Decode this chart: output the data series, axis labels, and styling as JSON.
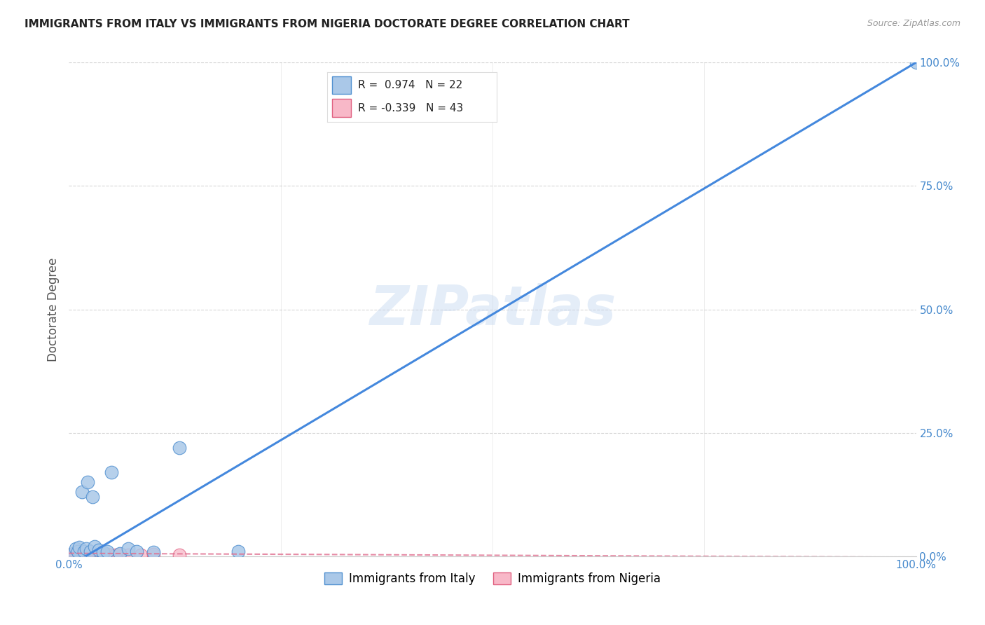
{
  "title": "IMMIGRANTS FROM ITALY VS IMMIGRANTS FROM NIGERIA DOCTORATE DEGREE CORRELATION CHART",
  "source": "Source: ZipAtlas.com",
  "ylabel": "Doctorate Degree",
  "legend_labels": [
    "Immigrants from Italy",
    "Immigrants from Nigeria"
  ],
  "italy_R": 0.974,
  "italy_N": 22,
  "nigeria_R": -0.339,
  "nigeria_N": 43,
  "italy_scatter_color": "#aac8e8",
  "italy_scatter_edge": "#5090d0",
  "nigeria_scatter_color": "#f8b8c8",
  "nigeria_scatter_edge": "#e06080",
  "italy_line_color": "#4488dd",
  "nigeria_line_color": "#e07090",
  "watermark": "ZIPatlas",
  "italy_x": [
    0.005,
    0.008,
    0.01,
    0.012,
    0.015,
    0.018,
    0.02,
    0.022,
    0.025,
    0.028,
    0.03,
    0.035,
    0.04,
    0.045,
    0.05,
    0.06,
    0.07,
    0.08,
    0.1,
    0.13,
    0.2,
    1.0
  ],
  "italy_y": [
    0.005,
    0.015,
    0.01,
    0.018,
    0.13,
    0.01,
    0.015,
    0.15,
    0.01,
    0.12,
    0.02,
    0.012,
    0.008,
    0.01,
    0.17,
    0.005,
    0.015,
    0.01,
    0.008,
    0.22,
    0.01,
    1.0
  ],
  "nigeria_x": [
    0.002,
    0.003,
    0.004,
    0.005,
    0.006,
    0.007,
    0.008,
    0.009,
    0.01,
    0.011,
    0.012,
    0.013,
    0.014,
    0.015,
    0.016,
    0.017,
    0.018,
    0.019,
    0.02,
    0.021,
    0.022,
    0.023,
    0.024,
    0.025,
    0.026,
    0.027,
    0.028,
    0.029,
    0.03,
    0.032,
    0.034,
    0.036,
    0.038,
    0.04,
    0.042,
    0.045,
    0.05,
    0.055,
    0.06,
    0.07,
    0.085,
    0.1,
    0.13
  ],
  "nigeria_y": [
    0.003,
    0.004,
    0.003,
    0.004,
    0.003,
    0.004,
    0.003,
    0.004,
    0.003,
    0.003,
    0.004,
    0.003,
    0.004,
    0.003,
    0.004,
    0.003,
    0.004,
    0.003,
    0.004,
    0.003,
    0.003,
    0.004,
    0.003,
    0.004,
    0.003,
    0.003,
    0.004,
    0.003,
    0.003,
    0.004,
    0.003,
    0.003,
    0.004,
    0.003,
    0.003,
    0.004,
    0.003,
    0.003,
    0.004,
    0.003,
    0.003,
    0.004,
    0.003
  ],
  "italy_line_x0": 0.0,
  "italy_line_y0": -0.02,
  "italy_line_x1": 1.0,
  "italy_line_y1": 1.0,
  "nigeria_line_x0": 0.0,
  "nigeria_line_y0": 0.006,
  "nigeria_line_x1": 1.0,
  "nigeria_line_y1": -0.002,
  "xlim": [
    0.0,
    1.0
  ],
  "ylim": [
    0.0,
    1.0
  ],
  "ytick_positions": [
    0.0,
    0.25,
    0.5,
    0.75,
    1.0
  ],
  "ytick_labels": [
    "0.0%",
    "25.0%",
    "50.0%",
    "75.0%",
    "100.0%"
  ],
  "xtick_minor_positions": [
    0.25,
    0.5,
    0.75
  ],
  "xtick_edge_labels": {
    "0.0": "0.0%",
    "1.0": "100.0%"
  },
  "grid_color": "#cccccc",
  "tick_color": "#4488cc",
  "title_color": "#222222",
  "source_color": "#999999"
}
